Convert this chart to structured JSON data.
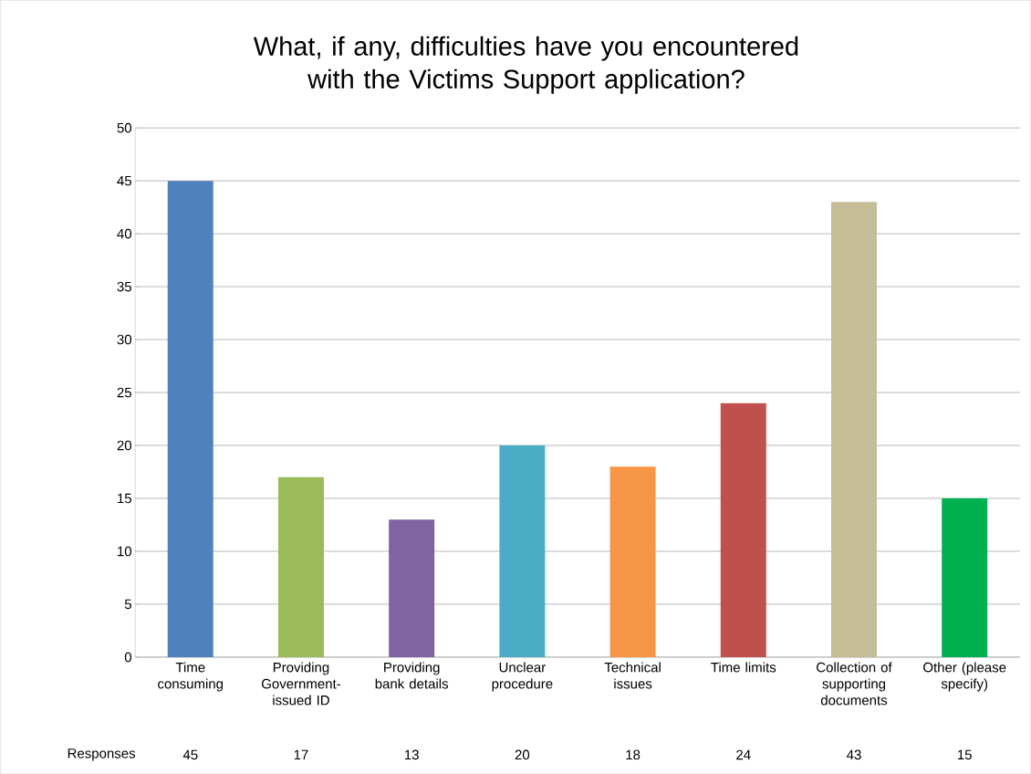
{
  "chart_data": {
    "type": "bar",
    "title": "What, if any, difficulties have you encountered with the Victims Support application?",
    "categories": [
      "Time consuming",
      "Providing Government-issued ID",
      "Providing bank details",
      "Unclear procedure",
      "Technical issues",
      "Time limits",
      "Collection of supporting documents",
      "Other (please specify)"
    ],
    "series": [
      {
        "name": "Responses",
        "colors": [
          "#4f81bd",
          "#9bbb59",
          "#8064a2",
          "#4bacc6",
          "#f79646",
          "#c0504d",
          "#c4bd97",
          "#00b050"
        ],
        "values": [
          45,
          17,
          13,
          20,
          18,
          24,
          43,
          15
        ]
      }
    ],
    "ylim": [
      0,
      50
    ],
    "yticks": [
      0,
      5,
      10,
      15,
      20,
      25,
      30,
      35,
      40,
      45,
      50
    ],
    "grid": "y",
    "data_labels": true
  }
}
